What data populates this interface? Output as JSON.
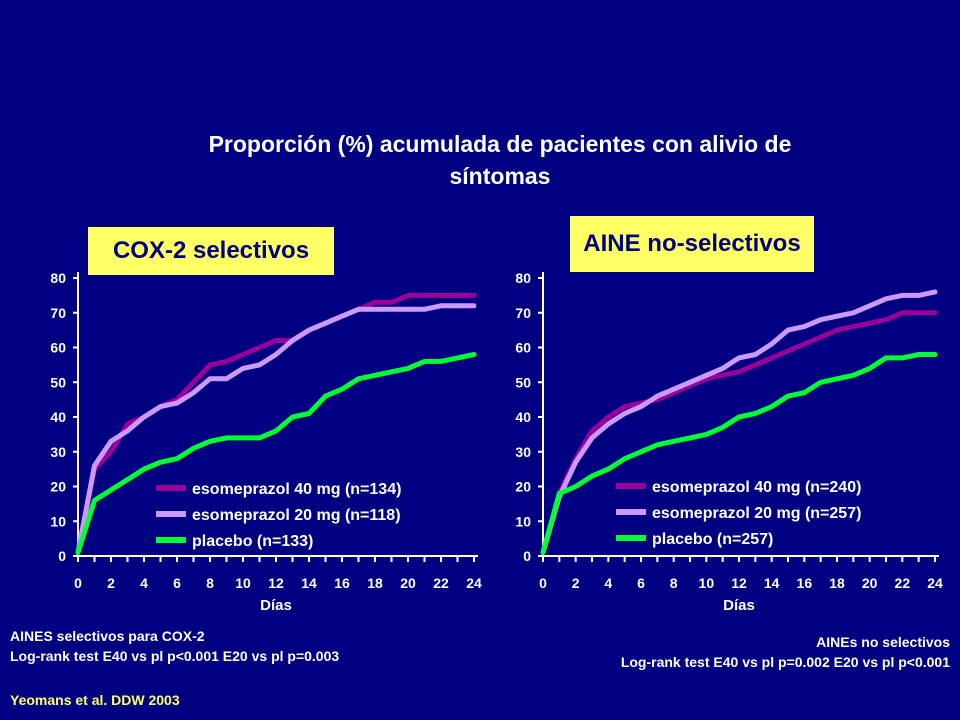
{
  "title_line1": "Proporción (%) acumulada de pacientes con alivio de",
  "title_line2": "síntomas",
  "notes_left": {
    "line1": "AINES selectivos para COX-2",
    "line2": "Log-rank test E40 vs pl  p<0.001 E20 vs pl  p=0.003"
  },
  "notes_right": {
    "line1": "AINEs no selectivos",
    "line2": "Log-rank test  E40 vs pl  p=0.002 E20 vs pl p<0.001"
  },
  "citation": "Yeomans et al. DDW 2003",
  "colors": {
    "background": "#000080",
    "highlight": "#ffff66",
    "e40": "#990099",
    "e20": "#cc99ff",
    "placebo": "#00ff33"
  },
  "chart_data": [
    {
      "type": "line",
      "title": "COX-2 selectivos",
      "xlabel": "Días",
      "ylabel": "",
      "xlim": [
        0,
        24
      ],
      "ylim": [
        0,
        80
      ],
      "x_ticks": [
        0,
        2,
        4,
        6,
        8,
        10,
        12,
        14,
        16,
        18,
        20,
        22,
        24
      ],
      "y_ticks": [
        0,
        10,
        20,
        30,
        40,
        50,
        60,
        70,
        80
      ],
      "grid": false,
      "legend_position": "bottom-right",
      "series": [
        {
          "name": "esomeprazol 40 mg (n=134)",
          "color": "#990099",
          "points": [
            [
              0,
              1
            ],
            [
              1,
              25
            ],
            [
              2,
              30
            ],
            [
              3,
              38
            ],
            [
              4,
              40
            ],
            [
              5,
              43
            ],
            [
              6,
              45
            ],
            [
              7,
              50
            ],
            [
              8,
              55
            ],
            [
              9,
              56
            ],
            [
              10,
              58
            ],
            [
              11,
              60
            ],
            [
              12,
              62
            ],
            [
              13,
              62
            ],
            [
              14,
              65
            ],
            [
              15,
              67
            ],
            [
              16,
              69
            ],
            [
              17,
              71
            ],
            [
              18,
              73
            ],
            [
              19,
              73
            ],
            [
              20,
              75
            ],
            [
              21,
              75
            ],
            [
              22,
              75
            ],
            [
              23,
              75
            ],
            [
              24,
              75
            ]
          ]
        },
        {
          "name": "esomeprazol 20 mg (n=118)",
          "color": "#cc99ff",
          "points": [
            [
              0,
              1
            ],
            [
              1,
              26
            ],
            [
              2,
              33
            ],
            [
              3,
              36
            ],
            [
              4,
              40
            ],
            [
              5,
              43
            ],
            [
              6,
              44
            ],
            [
              7,
              47
            ],
            [
              8,
              51
            ],
            [
              9,
              51
            ],
            [
              10,
              54
            ],
            [
              11,
              55
            ],
            [
              12,
              58
            ],
            [
              13,
              62
            ],
            [
              14,
              65
            ],
            [
              15,
              67
            ],
            [
              16,
              69
            ],
            [
              17,
              71
            ],
            [
              18,
              71
            ],
            [
              19,
              71
            ],
            [
              20,
              71
            ],
            [
              21,
              71
            ],
            [
              22,
              72
            ],
            [
              23,
              72
            ],
            [
              24,
              72
            ]
          ]
        },
        {
          "name": "placebo (n=133)",
          "color": "#00ff33",
          "points": [
            [
              0,
              1
            ],
            [
              1,
              16
            ],
            [
              2,
              19
            ],
            [
              3,
              22
            ],
            [
              4,
              25
            ],
            [
              5,
              27
            ],
            [
              6,
              28
            ],
            [
              7,
              31
            ],
            [
              8,
              33
            ],
            [
              9,
              34
            ],
            [
              10,
              34
            ],
            [
              11,
              34
            ],
            [
              12,
              36
            ],
            [
              13,
              40
            ],
            [
              14,
              41
            ],
            [
              15,
              46
            ],
            [
              16,
              48
            ],
            [
              17,
              51
            ],
            [
              18,
              52
            ],
            [
              19,
              53
            ],
            [
              20,
              54
            ],
            [
              21,
              56
            ],
            [
              22,
              56
            ],
            [
              23,
              57
            ],
            [
              24,
              58
            ]
          ]
        }
      ]
    },
    {
      "type": "line",
      "title": "AINE no-selectivos",
      "xlabel": "Días",
      "ylabel": "",
      "xlim": [
        0,
        24
      ],
      "ylim": [
        0,
        80
      ],
      "x_ticks": [
        0,
        2,
        4,
        6,
        8,
        10,
        12,
        14,
        16,
        18,
        20,
        22,
        24
      ],
      "y_ticks": [
        0,
        10,
        20,
        30,
        40,
        50,
        60,
        70,
        80
      ],
      "grid": false,
      "legend_position": "bottom-right",
      "series": [
        {
          "name": "esomeprazol 40 mg (n=240)",
          "color": "#990099",
          "points": [
            [
              0,
              1
            ],
            [
              1,
              18
            ],
            [
              2,
              28
            ],
            [
              3,
              36
            ],
            [
              4,
              40
            ],
            [
              5,
              43
            ],
            [
              6,
              44
            ],
            [
              7,
              45
            ],
            [
              8,
              47
            ],
            [
              9,
              49
            ],
            [
              10,
              51
            ],
            [
              11,
              52
            ],
            [
              12,
              53
            ],
            [
              13,
              55
            ],
            [
              14,
              57
            ],
            [
              15,
              59
            ],
            [
              16,
              61
            ],
            [
              17,
              63
            ],
            [
              18,
              65
            ],
            [
              19,
              66
            ],
            [
              20,
              67
            ],
            [
              21,
              68
            ],
            [
              22,
              70
            ],
            [
              23,
              70
            ],
            [
              24,
              70
            ]
          ]
        },
        {
          "name": "esomeprazol 20 mg (n=257)",
          "color": "#cc99ff",
          "points": [
            [
              0,
              1
            ],
            [
              1,
              17
            ],
            [
              2,
              27
            ],
            [
              3,
              34
            ],
            [
              4,
              38
            ],
            [
              5,
              41
            ],
            [
              6,
              43
            ],
            [
              7,
              46
            ],
            [
              8,
              48
            ],
            [
              9,
              50
            ],
            [
              10,
              52
            ],
            [
              11,
              54
            ],
            [
              12,
              57
            ],
            [
              13,
              58
            ],
            [
              14,
              61
            ],
            [
              15,
              65
            ],
            [
              16,
              66
            ],
            [
              17,
              68
            ],
            [
              18,
              69
            ],
            [
              19,
              70
            ],
            [
              20,
              72
            ],
            [
              21,
              74
            ],
            [
              22,
              75
            ],
            [
              23,
              75
            ],
            [
              24,
              76
            ]
          ]
        },
        {
          "name": "placebo (n=257)",
          "color": "#00ff33",
          "points": [
            [
              0,
              1
            ],
            [
              1,
              18
            ],
            [
              2,
              20
            ],
            [
              3,
              23
            ],
            [
              4,
              25
            ],
            [
              5,
              28
            ],
            [
              6,
              30
            ],
            [
              7,
              32
            ],
            [
              8,
              33
            ],
            [
              9,
              34
            ],
            [
              10,
              35
            ],
            [
              11,
              37
            ],
            [
              12,
              40
            ],
            [
              13,
              41
            ],
            [
              14,
              43
            ],
            [
              15,
              46
            ],
            [
              16,
              47
            ],
            [
              17,
              50
            ],
            [
              18,
              51
            ],
            [
              19,
              52
            ],
            [
              20,
              54
            ],
            [
              21,
              57
            ],
            [
              22,
              57
            ],
            [
              23,
              58
            ],
            [
              24,
              58
            ]
          ]
        }
      ]
    }
  ]
}
